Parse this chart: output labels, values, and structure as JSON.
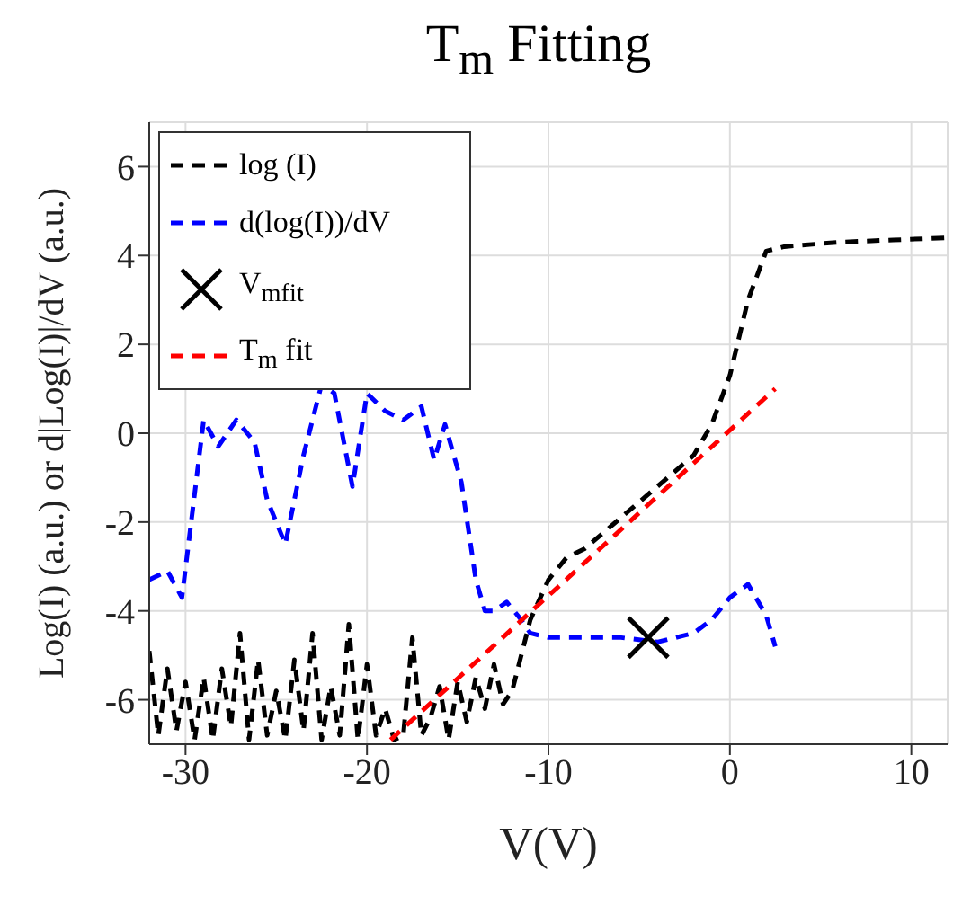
{
  "chart_data": {
    "type": "line",
    "title": "T$_{m}$ Fitting",
    "xlabel": "V(V)",
    "ylabel": "Log(I) (a.u.) or d|Log(I)|/dV (a.u.)",
    "xlim": [
      -32,
      12
    ],
    "ylim": [
      -7,
      7
    ],
    "xticks": [
      -30,
      -20,
      -10,
      0,
      10
    ],
    "yticks": [
      -6,
      -4,
      -2,
      0,
      2,
      4,
      6
    ],
    "grid": true,
    "legend": "top left",
    "series": [
      {
        "name": "log (I)",
        "line_style": "dashed",
        "color": "#000000",
        "x": [
          -32,
          -31.5,
          -31,
          -30.5,
          -30,
          -29.5,
          -29,
          -28.5,
          -28,
          -27.5,
          -27,
          -26.5,
          -26,
          -25.5,
          -25,
          -24.5,
          -24,
          -23.5,
          -23,
          -22.5,
          -22,
          -21.5,
          -21,
          -20.5,
          -20,
          -19.5,
          -19,
          -18.5,
          -18,
          -17.5,
          -17,
          -16.5,
          -16,
          -15.5,
          -15,
          -14.5,
          -14,
          -13.5,
          -13,
          -12.5,
          -12,
          -11.5,
          -11,
          -10,
          -9,
          -8,
          -6,
          -4,
          -2,
          -1,
          0,
          1,
          2,
          3,
          6,
          9,
          12
        ],
        "values": [
          -4.9,
          -6.8,
          -5.3,
          -6.7,
          -5.6,
          -6.9,
          -5.5,
          -6.9,
          -5.3,
          -6.6,
          -4.5,
          -6.9,
          -5.1,
          -6.8,
          -5.8,
          -6.9,
          -5.1,
          -6.7,
          -4.5,
          -6.9,
          -5.7,
          -6.8,
          -4.3,
          -6.9,
          -5.2,
          -6.8,
          -6.2,
          -6.9,
          -6.8,
          -4.6,
          -6.8,
          -6.4,
          -5.7,
          -6.9,
          -5.6,
          -6.5,
          -5.5,
          -6.2,
          -5.2,
          -6.1,
          -5.8,
          -5,
          -4.2,
          -3.3,
          -2.8,
          -2.6,
          -1.9,
          -1.2,
          -0.5,
          0.2,
          1.3,
          3,
          4.1,
          4.2,
          4.3,
          4.35,
          4.4
        ]
      },
      {
        "name": "d(log(I))/dV",
        "line_style": "dashed",
        "color": "#0000ff",
        "x": [
          -32,
          -31,
          -30.2,
          -29,
          -28.2,
          -27.2,
          -26.2,
          -25.5,
          -24.5,
          -23.5,
          -22.5,
          -21.8,
          -20.8,
          -20,
          -19,
          -18,
          -17,
          -16.3,
          -15.7,
          -14.8,
          -14,
          -13.5,
          -13,
          -12.3,
          -11.5,
          -11,
          -10,
          -9,
          -8,
          -7,
          -6,
          -4,
          -2,
          -1,
          0,
          1,
          2,
          2.5
        ],
        "values": [
          -3.3,
          -3.1,
          -3.7,
          0.3,
          -0.3,
          0.3,
          -0.2,
          -1.5,
          -2.5,
          -0.5,
          1.1,
          0.9,
          -1.2,
          0.9,
          0.5,
          0.3,
          0.6,
          -0.6,
          0.2,
          -1.1,
          -3.3,
          -4,
          -4,
          -3.8,
          -4.2,
          -4.5,
          -4.6,
          -4.6,
          -4.6,
          -4.6,
          -4.6,
          -4.7,
          -4.5,
          -4.2,
          -3.7,
          -3.4,
          -4.1,
          -4.8
        ]
      },
      {
        "name": "V$_{mfit}$",
        "type": "scatter",
        "marker": "cross",
        "color": "#000000",
        "x": [
          -4.5
        ],
        "values": [
          -4.6
        ]
      },
      {
        "name": "T$_{m}$ fit",
        "line_style": "dashed",
        "color": "#ff0000",
        "x": [
          -18.7,
          2.5
        ],
        "values": [
          -6.9,
          1
        ]
      }
    ]
  }
}
